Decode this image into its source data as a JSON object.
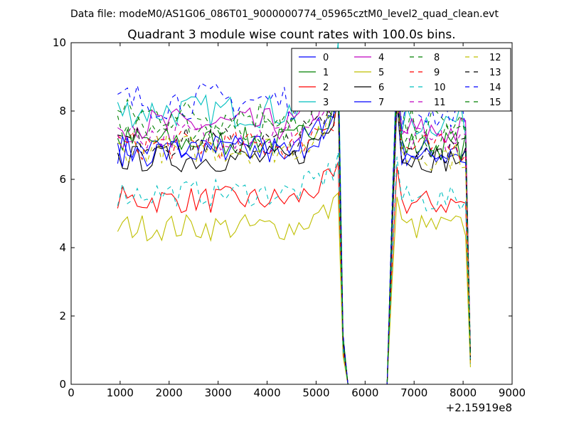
{
  "chart_data": {
    "type": "line",
    "suptitle": "Data file: modeM0/AS1G06_086T01_9000000774_05965cztM0_level2_quad_clean.evt",
    "title": "Quadrant 3 module wise count rates with 100.0s bins.",
    "xlabel": "",
    "ylabel": "",
    "x_offset_label": "+2.15919e8",
    "xlim": [
      0,
      9000
    ],
    "ylim": [
      0,
      10
    ],
    "x_ticks": [
      0,
      1000,
      2000,
      3000,
      4000,
      5000,
      6000,
      7000,
      8000,
      9000
    ],
    "y_ticks": [
      0,
      2,
      4,
      6,
      8,
      10
    ],
    "legend_position": "top-right",
    "segments": {
      "seg1_x_start": 950,
      "seg1_x_end": 5450,
      "drop_x": [
        5550,
        5650
      ],
      "gap_x": [
        5650,
        6450
      ],
      "seg2_x_start": 6550,
      "seg2_x_end": 8050,
      "final_x": 8150,
      "step": 100
    },
    "series": [
      {
        "name": "0",
        "color": "#0000ff",
        "dash": "solid",
        "level1": 6.9,
        "level2": 6.8,
        "noise": 0.22,
        "peak": 8.6,
        "final": 0.8
      },
      {
        "name": "1",
        "color": "#008000",
        "dash": "solid",
        "level1": 7.1,
        "level2": 7.0,
        "noise": 0.22,
        "peak": 8.9,
        "final": 0.8
      },
      {
        "name": "2",
        "color": "#ff0000",
        "dash": "solid",
        "level1": 5.4,
        "level2": 5.3,
        "noise": 0.2,
        "peak": 6.5,
        "final": 0.6
      },
      {
        "name": "3",
        "color": "#00bfbf",
        "dash": "solid",
        "level1": 8.0,
        "level2": 7.7,
        "noise": 0.25,
        "peak": 10.0,
        "final": 0.9
      },
      {
        "name": "4",
        "color": "#bf00bf",
        "dash": "solid",
        "level1": 7.6,
        "level2": 7.4,
        "noise": 0.25,
        "peak": 9.2,
        "final": 0.8
      },
      {
        "name": "5",
        "color": "#bfbf00",
        "dash": "solid",
        "level1": 4.6,
        "level2": 4.6,
        "noise": 0.2,
        "peak": 5.6,
        "final": 0.5
      },
      {
        "name": "6",
        "color": "#000000",
        "dash": "solid",
        "level1": 6.6,
        "level2": 6.6,
        "noise": 0.2,
        "peak": 8.4,
        "final": 0.7
      },
      {
        "name": "7",
        "color": "#0000ff",
        "dash": "solid",
        "level1": 6.8,
        "level2": 6.7,
        "noise": 0.22,
        "peak": 8.5,
        "final": 0.8
      },
      {
        "name": "8",
        "color": "#008000",
        "dash": "dashed",
        "level1": 7.9,
        "level2": 7.6,
        "noise": 0.25,
        "peak": 9.4,
        "final": 0.9
      },
      {
        "name": "9",
        "color": "#ff0000",
        "dash": "dashed",
        "level1": 7.0,
        "level2": 6.9,
        "noise": 0.22,
        "peak": 8.5,
        "final": 0.8
      },
      {
        "name": "10",
        "color": "#00bfbf",
        "dash": "dashed",
        "level1": 5.6,
        "level2": 5.4,
        "noise": 0.2,
        "peak": 6.8,
        "final": 0.6
      },
      {
        "name": "11",
        "color": "#bf00bf",
        "dash": "dashed",
        "level1": 7.3,
        "level2": 7.1,
        "noise": 0.22,
        "peak": 8.8,
        "final": 0.8
      },
      {
        "name": "12",
        "color": "#bfbf00",
        "dash": "dashed",
        "level1": 6.9,
        "level2": 6.7,
        "noise": 0.22,
        "peak": 8.4,
        "final": 0.7
      },
      {
        "name": "13",
        "color": "#000000",
        "dash": "dashed",
        "level1": 7.1,
        "level2": 6.9,
        "noise": 0.22,
        "peak": 8.6,
        "final": 0.8
      },
      {
        "name": "14",
        "color": "#0000ff",
        "dash": "dashed",
        "level1": 8.3,
        "level2": 8.0,
        "noise": 0.28,
        "peak": 9.6,
        "final": 0.9
      },
      {
        "name": "15",
        "color": "#008000",
        "dash": "dashed",
        "level1": 7.5,
        "level2": 7.2,
        "noise": 0.22,
        "peak": 9.0,
        "final": 0.8
      }
    ]
  }
}
